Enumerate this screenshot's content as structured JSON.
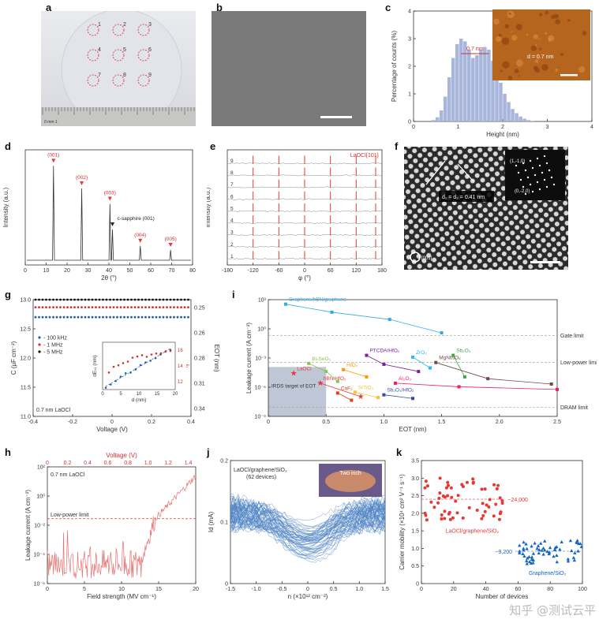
{
  "panel_labels": [
    "a",
    "b",
    "c",
    "d",
    "e",
    "f",
    "g",
    "h",
    "i",
    "j",
    "k"
  ],
  "a": {
    "wafer_labels": [
      "1",
      "2",
      "3",
      "4",
      "5",
      "6",
      "7",
      "8",
      "9"
    ],
    "ruler_label": "0 mm 1"
  },
  "c": {
    "inset_labels": {
      "width": "0.7 nm",
      "depth": "d = 0.7 nm"
    },
    "chart_data": {
      "type": "bar",
      "xlabel": "Height (nm)",
      "ylabel": "Percentage of counts (%)",
      "xlim": [
        0,
        4.5
      ],
      "ylim": [
        0,
        4
      ],
      "xticks": [
        "0",
        "1",
        "2",
        "3",
        "4"
      ],
      "yticks": [
        "0",
        "1",
        "2",
        "3",
        "4"
      ],
      "x": [
        0.5,
        0.6,
        0.7,
        0.8,
        0.9,
        1.0,
        1.1,
        1.2,
        1.3,
        1.4,
        1.5,
        1.6,
        1.7,
        1.8,
        1.9,
        2.0,
        2.1,
        2.2,
        2.3,
        2.4,
        2.5,
        2.6,
        2.7,
        2.8,
        2.9,
        3.0
      ],
      "values": [
        0.05,
        0.15,
        0.4,
        0.9,
        1.6,
        2.3,
        2.8,
        3.0,
        2.9,
        2.6,
        2.3,
        2.4,
        2.6,
        2.7,
        2.6,
        2.2,
        1.8,
        1.4,
        1.0,
        0.7,
        0.45,
        0.3,
        0.18,
        0.1,
        0.05,
        0.02
      ]
    }
  },
  "d": {
    "chart_data": {
      "type": "line",
      "xlabel": "2θ (°)",
      "ylabel": "Intensity (a.u.)",
      "xlim": [
        0,
        80
      ],
      "xticks": [
        "0",
        "10",
        "20",
        "30",
        "40",
        "50",
        "60",
        "70",
        "80"
      ],
      "peaks": [
        {
          "x": 13.5,
          "h": 0.92,
          "label": "(001)"
        },
        {
          "x": 27,
          "h": 0.7,
          "label": "(002)"
        },
        {
          "x": 40.5,
          "h": 0.55,
          "label": "(003)"
        },
        {
          "x": 41.7,
          "h": 0.3,
          "label": "c-sapphire (001)"
        },
        {
          "x": 55,
          "h": 0.14,
          "label": "(004)"
        },
        {
          "x": 69.5,
          "h": 0.1,
          "label": "(005)"
        }
      ]
    }
  },
  "e": {
    "title": "LaOCl{101}",
    "chart_data": {
      "type": "line",
      "xlabel": "φ (°)",
      "ylabel": "Intensity (a.u.)",
      "xlim": [
        -180,
        180
      ],
      "xticks": [
        "-180",
        "-120",
        "-60",
        "0",
        "60",
        "120",
        "180"
      ],
      "traces": [
        "9",
        "8",
        "7",
        "6",
        "5",
        "4",
        "3",
        "2",
        "1"
      ],
      "peak_positions": [
        -120,
        -60,
        0,
        60,
        120,
        180
      ]
    }
  },
  "f": {
    "spacing": "d₁ = d₂ = 0.41 nm",
    "fft_labels": [
      "(1,-1,0)",
      "(0,-2,0)"
    ],
    "zone": "[001]"
  },
  "g": {
    "chart_data": {
      "type": "scatter",
      "xlabel": "Voltage (V)",
      "ylabel": "C (μF cm⁻²)",
      "y2label": "EOT (nm)",
      "xlim": [
        -0.5,
        0.5
      ],
      "ylim": [
        11.0,
        13.0
      ],
      "xticks": [
        "-0.4",
        "-0.2",
        "0",
        "0.2",
        "0.4"
      ],
      "yticks": [
        "11.0",
        "11.5",
        "12.0",
        "12.5",
        "13.0"
      ],
      "y2ticks": [
        "0.25",
        "0.26",
        "0.28",
        "0.31",
        "0.34"
      ],
      "series": [
        {
          "name": "100 kHz",
          "value": 12.7
        },
        {
          "name": "1 MHz",
          "value": 12.87
        },
        {
          "name": "5 MHz",
          "value": 13.0
        }
      ],
      "note": "0.7 nm LaOCl",
      "inset": {
        "xlabel": "d (nm)",
        "ylabel": "dEₛₜ (nm)",
        "y2label": "εᵣ",
        "xticks": [
          "0",
          "5",
          "10",
          "15",
          "20"
        ],
        "y2ticks": [
          "12",
          "14",
          "16"
        ]
      }
    }
  },
  "h": {
    "chart_data": {
      "type": "line",
      "xlabel": "Field strength (MV cm⁻¹)",
      "ylabel": "Leakage current (A cm⁻²)",
      "x2label": "Voltage (V)",
      "xlim": [
        0,
        22
      ],
      "xticks": [
        "0",
        "5",
        "10",
        "15",
        "20"
      ],
      "x2ticks": [
        "0",
        "0.2",
        "0.4",
        "0.6",
        "0.8",
        "1.0",
        "1.2",
        "1.4"
      ],
      "yticks": [
        "10⁻⁶",
        "10⁻⁴",
        "10⁻²",
        "10⁰",
        "10²"
      ],
      "ylim_log": [
        -7,
        2
      ],
      "note": "0.7 nm LaOCl",
      "limit_label": "Low-power limit",
      "limit_value_log": -2
    }
  },
  "i": {
    "chart_data": {
      "type": "scatter",
      "xlabel": "EOT (nm)",
      "ylabel": "Leakage current (A cm⁻²)",
      "xlim": [
        0,
        2.5
      ],
      "xticks": [
        "0",
        "0.5",
        "1.0",
        "1.5",
        "2.0",
        "2.5"
      ],
      "ylim_log": [
        -9,
        4
      ],
      "yticks": [
        "10⁻⁹",
        "10⁻⁶",
        "10⁻³",
        "10⁰",
        "10³"
      ],
      "limits": [
        {
          "name": "Gate limit",
          "y_log": 0
        },
        {
          "name": "Low-power limit",
          "y_log": -3
        },
        {
          "name": "DRAM limit",
          "y_log": -8
        }
      ],
      "irds_label": "IRDS target of EOT",
      "series": [
        {
          "name": "Graphene/hBN/graphene",
          "color": "#36a9e1",
          "points": [
            [
              0.15,
              3.5
            ],
            [
              0.55,
              2.6
            ],
            [
              1.05,
              1.8
            ],
            [
              1.5,
              0.3
            ]
          ]
        },
        {
          "name": "LaOCl",
          "color": "#e53935",
          "points": [
            [
              0.22,
              -4.2
            ]
          ]
        },
        {
          "name": "hBN/HfO₂",
          "color": "#e53935",
          "points": [
            [
              0.45,
              -5.3
            ],
            [
              0.8,
              -6.8
            ]
          ]
        },
        {
          "name": "Bi₂SeO₅",
          "color": "#8bc34a",
          "points": [
            [
              0.35,
              -3.1
            ],
            [
              0.5,
              -4.0
            ],
            [
              0.6,
              -5.1
            ]
          ]
        },
        {
          "name": "PTCDA/HfO₂",
          "color": "#7b1fa2",
          "points": [
            [
              0.85,
              -2.2
            ],
            [
              1.0,
              -3.2
            ],
            [
              1.3,
              -4.0
            ]
          ]
        },
        {
          "name": "ZrO₂",
          "color": "#29b6f6",
          "points": [
            [
              1.25,
              -2.4
            ],
            [
              1.4,
              -3.6
            ]
          ]
        },
        {
          "name": "Sb₂O₃",
          "color": "#43a047",
          "points": [
            [
              1.6,
              -2.2
            ],
            [
              1.7,
              -4.6
            ]
          ]
        },
        {
          "name": "HfO₂",
          "color": "#ff9800",
          "points": [
            [
              0.65,
              -3.8
            ],
            [
              0.85,
              -4.6
            ]
          ]
        },
        {
          "name": "MgNb₂O₆",
          "color": "#6d4c41",
          "points": [
            [
              1.45,
              -3.0
            ],
            [
              1.9,
              -4.8
            ],
            [
              2.45,
              -5.4
            ]
          ]
        },
        {
          "name": "Al₂O₃",
          "color": "#e91e63",
          "points": [
            [
              1.1,
              -5.3
            ],
            [
              1.65,
              -5.7
            ],
            [
              2.5,
              -6.0
            ]
          ]
        },
        {
          "name": "SrTiO₃",
          "color": "#fbc02d",
          "points": [
            [
              0.75,
              -6.3
            ],
            [
              0.95,
              -6.9
            ]
          ]
        },
        {
          "name": "CaF₂",
          "color": "#d84315",
          "points": [
            [
              0.6,
              -6.4
            ],
            [
              0.72,
              -7.2
            ]
          ]
        },
        {
          "name": "Sb₂O₃/HfO₂",
          "color": "#3949ab",
          "points": [
            [
              1.0,
              -6.6
            ],
            [
              1.25,
              -7.0
            ]
          ]
        }
      ]
    }
  },
  "j": {
    "title": "LaOCl/graphene/SiO₂",
    "subtitle": "(62 devices)",
    "photo_label": "Two inch",
    "chart_data": {
      "type": "line",
      "xlabel": "n (×10¹² cm⁻²)",
      "ylabel": "Id (mA)",
      "xlim": [
        -1.5,
        1.5
      ],
      "ylim": [
        0,
        0.22
      ],
      "xticks": [
        "-1.5",
        "-1.0",
        "-0.5",
        "0",
        "0.5",
        "1.0",
        "1.5"
      ],
      "yticks": [
        "0",
        "0.1",
        "0.2"
      ],
      "curve_count": 62
    }
  },
  "k": {
    "chart_data": {
      "type": "scatter",
      "xlabel": "Number of devices",
      "ylabel": "Carrier mobility (×10⁴ cm² V⁻¹ s⁻¹)",
      "xlim": [
        0,
        120
      ],
      "ylim": [
        0,
        3.5
      ],
      "xticks": [
        "0",
        "20",
        "40",
        "60",
        "80",
        "100"
      ],
      "yticks": [
        "0",
        "0.5",
        "1.0",
        "1.5",
        "2.0",
        "2.5",
        "3.0",
        "3.5"
      ],
      "series": [
        {
          "name": "LaOCl/graphene/SiO₂",
          "mean_label": "~24,000",
          "mean": 2.4,
          "color": "#e53935",
          "x_range": [
            0,
            62
          ]
        },
        {
          "name": "Graphene/SiO₂",
          "mean_label": "~9,200",
          "mean": 0.92,
          "color": "#1565c0",
          "x_range": [
            70,
            120
          ]
        }
      ]
    }
  },
  "watermark": "知乎 @测试云平"
}
